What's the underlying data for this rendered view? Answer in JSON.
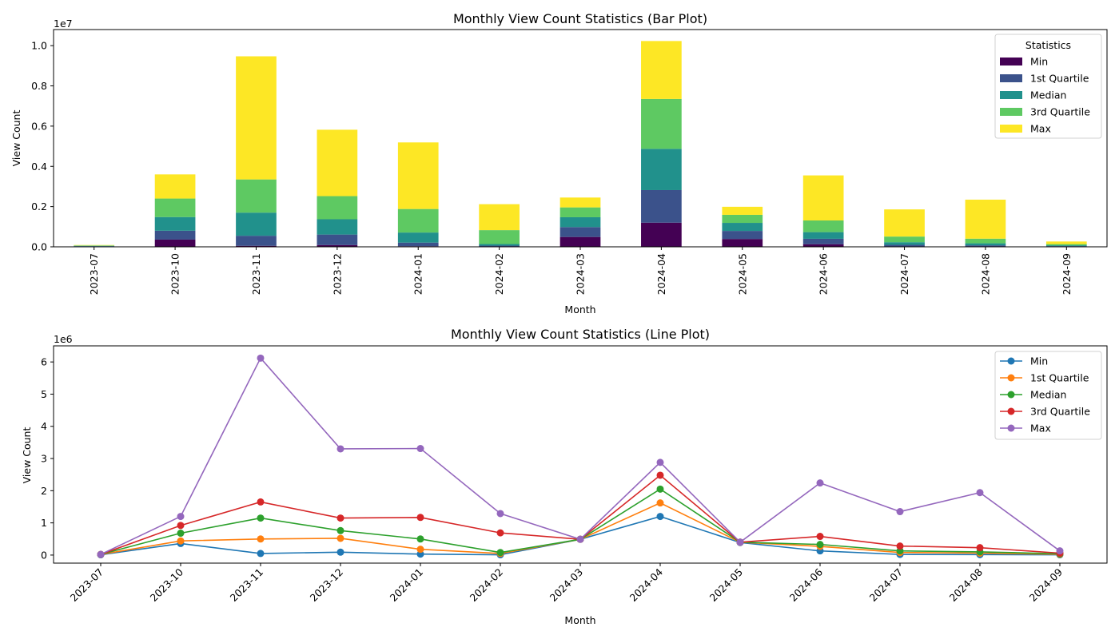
{
  "chart_data": [
    {
      "type": "bar",
      "stacked": true,
      "title": "Monthly View Count Statistics (Bar Plot)",
      "xlabel": "Month",
      "ylabel": "View Count",
      "multiplier": "1e7",
      "ylim": [
        0,
        10800000
      ],
      "yticks": [
        0,
        2000000,
        4000000,
        6000000,
        8000000,
        10000000
      ],
      "ytick_labels": [
        "0.0",
        "0.2",
        "0.4",
        "0.6",
        "0.8",
        "1.0"
      ],
      "legend_title": "Statistics",
      "legend_position": "top-right",
      "categories": [
        "2023-07",
        "2023-10",
        "2023-11",
        "2023-12",
        "2024-01",
        "2024-02",
        "2024-03",
        "2024-04",
        "2024-05",
        "2024-06",
        "2024-07",
        "2024-08",
        "2024-09"
      ],
      "series": [
        {
          "name": "Min",
          "color": "#440154",
          "values": [
            10000,
            360000,
            50000,
            90000,
            30000,
            10000,
            490000,
            1200000,
            390000,
            130000,
            20000,
            15000,
            10000
          ]
        },
        {
          "name": "1st Quartile",
          "color": "#3b528b",
          "values": [
            20000,
            440000,
            500000,
            520000,
            180000,
            50000,
            490000,
            1620000,
            400000,
            270000,
            80000,
            60000,
            25000
          ]
        },
        {
          "name": "Median",
          "color": "#21918c",
          "values": [
            20000,
            680000,
            1150000,
            760000,
            500000,
            80000,
            490000,
            2050000,
            400000,
            330000,
            130000,
            100000,
            40000
          ]
        },
        {
          "name": "3rd Quartile",
          "color": "#5ec962",
          "values": [
            20000,
            920000,
            1650000,
            1150000,
            1170000,
            690000,
            490000,
            2480000,
            400000,
            580000,
            280000,
            230000,
            60000
          ]
        },
        {
          "name": "Max",
          "color": "#fde725",
          "values": [
            20000,
            1200000,
            6120000,
            3300000,
            3310000,
            1290000,
            490000,
            2880000,
            400000,
            2240000,
            1350000,
            1940000,
            130000
          ]
        }
      ]
    },
    {
      "type": "line",
      "title": "Monthly View Count Statistics (Line Plot)",
      "xlabel": "Month",
      "ylabel": "View Count",
      "multiplier": "1e6",
      "ylim": [
        -250000,
        6500000
      ],
      "yticks": [
        0,
        1000000,
        2000000,
        3000000,
        4000000,
        5000000,
        6000000
      ],
      "ytick_labels": [
        "0",
        "1",
        "2",
        "3",
        "4",
        "5",
        "6"
      ],
      "legend_position": "top-right",
      "categories": [
        "2023-07",
        "2023-10",
        "2023-11",
        "2023-12",
        "2024-01",
        "2024-02",
        "2024-03",
        "2024-04",
        "2024-05",
        "2024-06",
        "2024-07",
        "2024-08",
        "2024-09"
      ],
      "series": [
        {
          "name": "Min",
          "color": "#1f77b4",
          "values": [
            10000,
            360000,
            50000,
            90000,
            30000,
            10000,
            490000,
            1200000,
            390000,
            130000,
            20000,
            15000,
            10000
          ]
        },
        {
          "name": "1st Quartile",
          "color": "#ff7f0e",
          "values": [
            20000,
            440000,
            500000,
            520000,
            180000,
            50000,
            490000,
            1620000,
            400000,
            270000,
            80000,
            60000,
            25000
          ]
        },
        {
          "name": "Median",
          "color": "#2ca02c",
          "values": [
            20000,
            680000,
            1150000,
            760000,
            500000,
            80000,
            490000,
            2050000,
            400000,
            330000,
            130000,
            100000,
            40000
          ]
        },
        {
          "name": "3rd Quartile",
          "color": "#d62728",
          "values": [
            20000,
            920000,
            1650000,
            1150000,
            1170000,
            690000,
            490000,
            2480000,
            400000,
            580000,
            280000,
            230000,
            60000
          ]
        },
        {
          "name": "Max",
          "color": "#9467bd",
          "values": [
            20000,
            1200000,
            6120000,
            3300000,
            3310000,
            1290000,
            490000,
            2880000,
            400000,
            2240000,
            1350000,
            1940000,
            130000
          ]
        }
      ]
    }
  ]
}
